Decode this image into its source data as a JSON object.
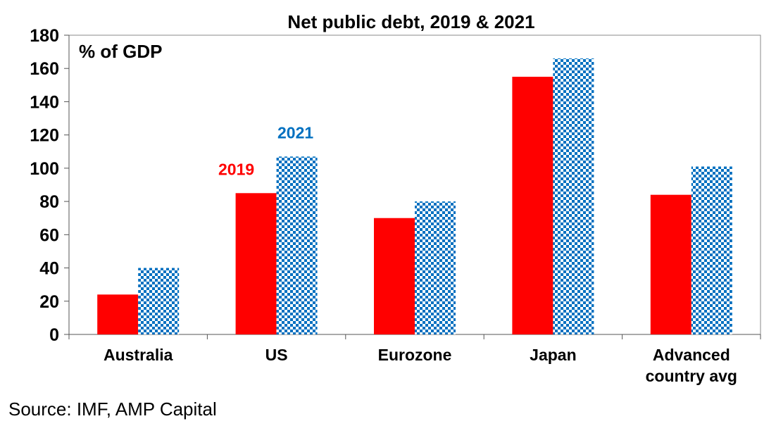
{
  "chart_data": {
    "type": "bar",
    "title": "Net public debt, 2019 & 2021",
    "unit_label": "% of GDP",
    "categories": [
      [
        "Australia"
      ],
      [
        "US"
      ],
      [
        "Eurozone"
      ],
      [
        "Japan"
      ],
      [
        "Advanced",
        "country avg"
      ]
    ],
    "series": [
      {
        "name": "2019",
        "color": "#ff0000",
        "values": [
          24,
          85,
          70,
          155,
          84
        ]
      },
      {
        "name": "2021",
        "color": "#0070c0",
        "pattern": "checkerboard",
        "values": [
          40,
          107,
          80,
          166,
          101
        ]
      }
    ],
    "ylim": [
      0,
      180
    ],
    "yticks": [
      0,
      20,
      40,
      60,
      80,
      100,
      120,
      140,
      160,
      180
    ],
    "annotations": [
      {
        "text": "2019",
        "series": 0,
        "category": 1,
        "color": "#ff0000"
      },
      {
        "text": "2021",
        "series": 1,
        "category": 1,
        "color": "#0070c0"
      }
    ]
  },
  "source": "Source: IMF, AMP Capital"
}
